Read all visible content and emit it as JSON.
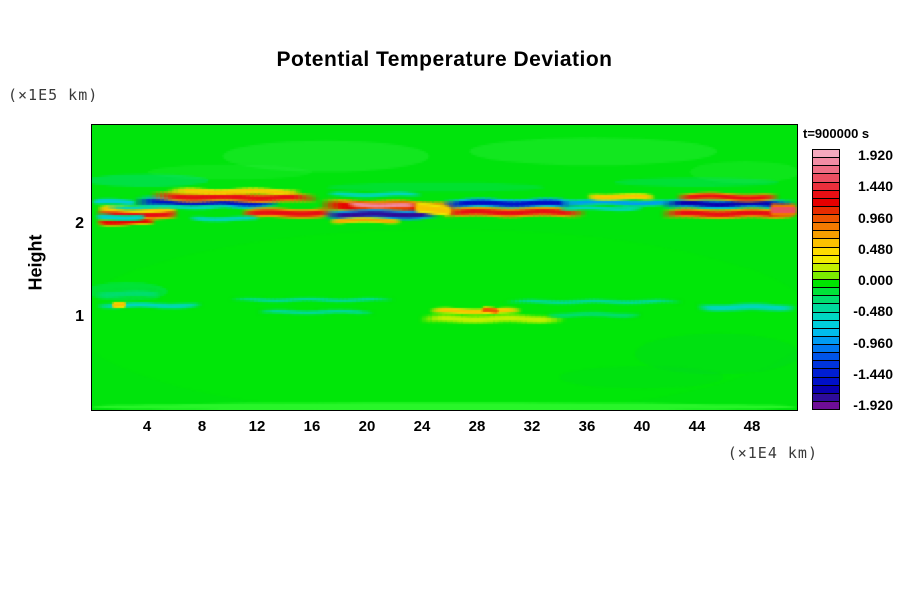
{
  "title": "Potential Temperature Deviation",
  "time_label": "t=900000 s",
  "y_axis": {
    "label": "Height",
    "unit": "(×1E5 km)",
    "ticks": [
      2,
      1
    ]
  },
  "x_axis": {
    "unit": "(×1E4 km)",
    "ticks": [
      4,
      8,
      12,
      16,
      20,
      24,
      28,
      32,
      36,
      40,
      44,
      48
    ]
  },
  "colorbar": {
    "labels": [
      "1.920",
      "1.440",
      "0.960",
      "0.480",
      "0.000",
      "-0.480",
      "-0.960",
      "-1.440",
      "-1.920"
    ],
    "colors": [
      "#F5A9BE",
      "#F28CA4",
      "#EF6E85",
      "#ED4F62",
      "#EB2F3C",
      "#E90F14",
      "#E60000",
      "#E82C00",
      "#EE5400",
      "#F37A00",
      "#F79E00",
      "#FBC100",
      "#FDDC00",
      "#F2EC00",
      "#C4F000",
      "#7CEC00",
      "#00E400",
      "#00E238",
      "#00DE6E",
      "#00DA9C",
      "#00D6C2",
      "#00CEDC",
      "#00BCEC",
      "#009CF2",
      "#0078F0",
      "#0054E8",
      "#0034DC",
      "#001ED2",
      "#0010C8",
      "#0A00B0",
      "#2E0C9A",
      "#6E0D96"
    ]
  },
  "chart_data": {
    "type": "heatmap",
    "title": "Potential Temperature Deviation",
    "xlabel": "(×1E4 km)",
    "ylabel": "Height (×1E5 km)",
    "time_annotation": "t=900000 s",
    "xlim": [
      0,
      51.3
    ],
    "ylim": [
      0,
      3.065
    ],
    "value_range": [
      -1.92,
      1.92
    ],
    "colormap_step": 0.12,
    "background_value": 0.0,
    "background_color": "#00E40C",
    "legend_position": "right",
    "grid": false,
    "streaks": [
      [
        0.3,
        6.3,
        2.115,
        -0.01,
        0.055,
        1.3
      ],
      [
        0.3,
        4.6,
        2.025,
        0,
        0.035,
        1.1
      ],
      [
        0.2,
        3.9,
        2.075,
        0,
        0.03,
        -0.7
      ],
      [
        3.0,
        13.7,
        2.235,
        0,
        0.06,
        -1.55
      ],
      [
        4.2,
        16.5,
        2.3,
        -0.02,
        0.05,
        1.25
      ],
      [
        5.4,
        15.2,
        2.355,
        0,
        0.028,
        0.55
      ],
      [
        0.4,
        6.2,
        2.165,
        0,
        0.035,
        0.5
      ],
      [
        10.8,
        17.6,
        2.12,
        0,
        0.05,
        1.3
      ],
      [
        7.0,
        12.2,
        2.06,
        0,
        0.025,
        -0.55
      ],
      [
        1.0,
        10.0,
        2.185,
        0,
        0.02,
        -0.5
      ],
      [
        16.5,
        27.2,
        2.2,
        -0.03,
        0.07,
        1.2
      ],
      [
        18.5,
        23.6,
        2.215,
        -0.02,
        0.035,
        1.7
      ],
      [
        16.8,
        25.2,
        2.105,
        0,
        0.05,
        -1.75
      ],
      [
        25.4,
        35.8,
        2.225,
        0,
        0.05,
        -1.55
      ],
      [
        25.3,
        36.0,
        2.13,
        0,
        0.05,
        1.3
      ],
      [
        23.4,
        26.2,
        2.17,
        -0.02,
        0.05,
        0.55
      ],
      [
        17.0,
        24.0,
        2.32,
        0,
        0.025,
        -0.5
      ],
      [
        17.2,
        22.5,
        2.04,
        0,
        0.025,
        0.6
      ],
      [
        34.0,
        42.6,
        2.24,
        -0.015,
        0.035,
        -0.9
      ],
      [
        41.4,
        51.25,
        2.22,
        0,
        0.05,
        -1.6
      ],
      [
        42.5,
        50.0,
        2.3,
        -0.015,
        0.04,
        1.25
      ],
      [
        41.4,
        51.25,
        2.115,
        0,
        0.05,
        1.3
      ],
      [
        49.3,
        51.28,
        2.16,
        0,
        0.06,
        1.45
      ],
      [
        34.0,
        40.2,
        2.17,
        0,
        0.022,
        -0.5
      ],
      [
        36.0,
        41.0,
        2.3,
        -0.01,
        0.03,
        0.55
      ],
      [
        0.3,
        8.0,
        1.12,
        0,
        0.03,
        -0.5
      ],
      [
        1.5,
        2.4,
        1.12,
        0,
        0.028,
        0.5
      ],
      [
        24.5,
        31.3,
        1.06,
        0,
        0.03,
        0.5
      ],
      [
        28.4,
        29.6,
        1.062,
        0,
        0.032,
        0.95
      ],
      [
        23.8,
        34.5,
        0.975,
        0,
        0.045,
        0.2
      ],
      [
        10.0,
        22.0,
        1.18,
        0,
        0.025,
        -0.4
      ],
      [
        30.0,
        43.0,
        1.16,
        0,
        0.028,
        -0.45
      ],
      [
        44.0,
        51.25,
        1.1,
        0,
        0.04,
        -0.5
      ],
      [
        12.0,
        20.5,
        1.05,
        0,
        0.028,
        -0.45
      ],
      [
        0.2,
        5.0,
        1.24,
        0,
        0.05,
        -0.35
      ],
      [
        33.0,
        40.0,
        1.02,
        0,
        0.03,
        -0.35
      ],
      [
        0.0,
        3.2,
        2.24,
        0,
        0.03,
        -0.6
      ]
    ],
    "patches": [
      [
        25.6,
        0.95,
        27.0,
        1.0,
        "#00EE00",
        0.3
      ],
      [
        17.0,
        2.73,
        7.5,
        0.17,
        "#2CEC3C",
        0.4
      ],
      [
        36.5,
        2.78,
        9.0,
        0.15,
        "#2CEC3C",
        0.4
      ],
      [
        47.5,
        2.56,
        4.0,
        0.12,
        "#2CEC3C",
        0.3
      ],
      [
        10.0,
        2.56,
        6.0,
        0.08,
        "#2CEC3C",
        0.28
      ],
      [
        4.0,
        2.47,
        4.5,
        0.07,
        "#00DC96",
        0.4
      ],
      [
        25.0,
        2.4,
        8.0,
        0.05,
        "#00DC8C",
        0.28
      ],
      [
        44.0,
        2.45,
        6.0,
        0.05,
        "#00DC96",
        0.3
      ],
      [
        2.5,
        1.27,
        3.0,
        0.1,
        "#00DC8C",
        0.35
      ],
      [
        45.5,
        0.6,
        6.0,
        0.22,
        "#00C83C",
        0.18
      ],
      [
        40.0,
        0.35,
        6.0,
        0.12,
        "#00C83C",
        0.15
      ],
      [
        25.6,
        0.035,
        25.7,
        0.045,
        "#30F830",
        0.85
      ]
    ]
  }
}
